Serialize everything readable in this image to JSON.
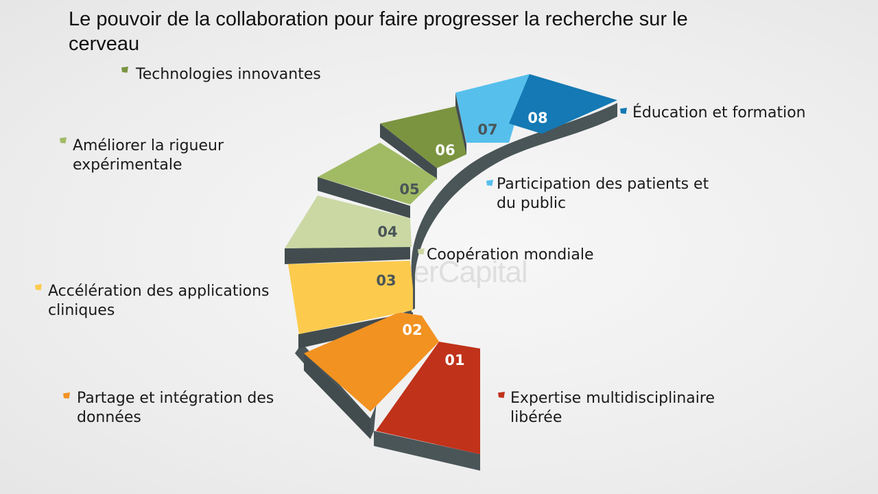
{
  "title": "Le pouvoir de la collaboration pour faire progresser la recherche sur le cerveau",
  "watermark": "FasterCapital",
  "steps": [
    {
      "number": "01",
      "label_line1": "Expertise multidisciplinaire",
      "label_line2": "libérée",
      "color": "#c0321a"
    },
    {
      "number": "02",
      "label_line1": "Partage et intégration des",
      "label_line2": "données",
      "color": "#f29221"
    },
    {
      "number": "03",
      "label_line1": "Accélération des applications",
      "label_line2": "cliniques",
      "color": "#fccb4e"
    },
    {
      "number": "04",
      "label_line1": "Coopération mondiale",
      "label_line2": "",
      "color": "#cbd8a4"
    },
    {
      "number": "05",
      "label_line1": "Améliorer la rigueur",
      "label_line2": "expérimentale",
      "color": "#a1bb65"
    },
    {
      "number": "06",
      "label_line1": "Technologies innovantes",
      "label_line2": "",
      "color": "#7b9440"
    },
    {
      "number": "07",
      "label_line1": "Participation des patients et",
      "label_line2": "du public",
      "color": "#56bfec"
    },
    {
      "number": "08",
      "label_line1": "Éducation et formation",
      "label_line2": "",
      "color": "#1479b4"
    }
  ]
}
